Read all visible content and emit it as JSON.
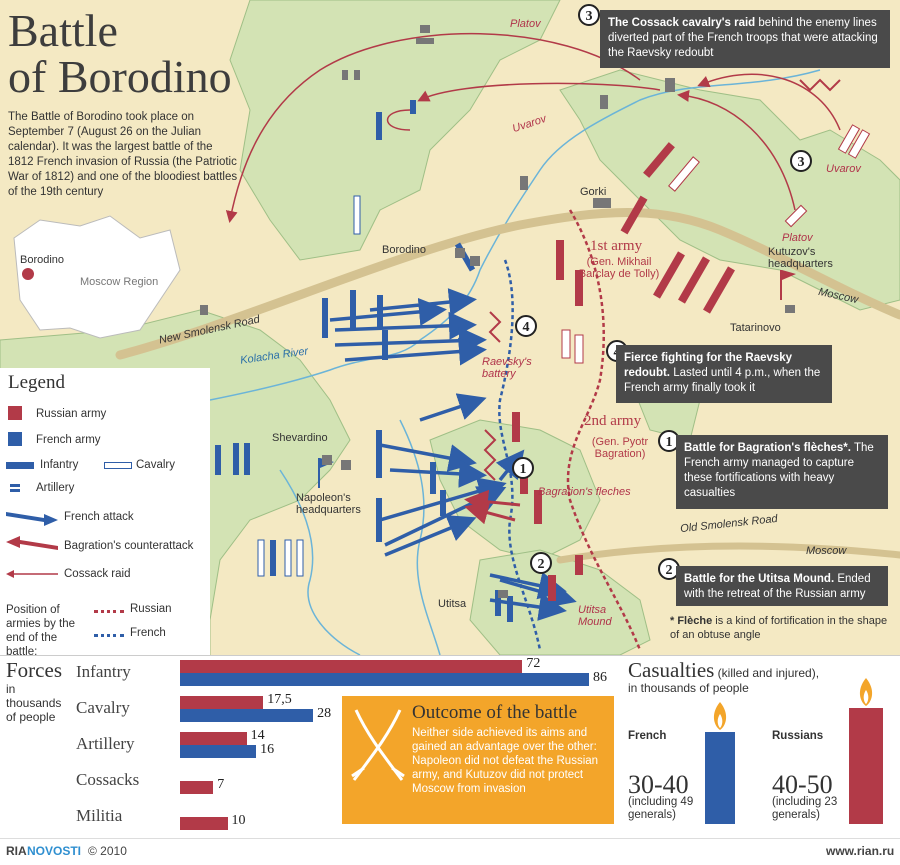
{
  "title": {
    "line1": "Battle",
    "line2": "of Borodino"
  },
  "intro": "The Battle of Borodino took place on September 7 (August 26 on the Julian calendar). It was the largest battle of the 1812 French invasion of Russia (the Patriotic War of 1812) and one of the bloodiest battles of the 19th century",
  "inset": {
    "city": "Borodino",
    "region": "Moscow Region"
  },
  "places": {
    "platov_top": "Platov",
    "uvarov_left": "Uvarov",
    "uvarov_right": "Uvarov",
    "platov_right": "Platov",
    "gorki": "Gorki",
    "borodino": "Borodino",
    "kutuzov_hq": "Kutuzov's headquarters",
    "moscow_upper": "Moscow",
    "moscow_lower": "Moscow",
    "tatarinovo": "Tatarinovo",
    "new_smolensk": "New Smolensk Road",
    "kolacha": "Kolacha River",
    "old_smolensk": "Old Smolensk Road",
    "shevardino": "Shevardino",
    "napoleon_hq": "Napoleon's headquarters",
    "utitsa": "Utitsa",
    "raevsky_battery": "Raevsky's battery",
    "bagration_fleches": "Bagration's fleches",
    "utitsa_mound": "Utitsa Mound",
    "first_army": "1st army",
    "first_army_cmd": "(Gen. Mikhail Barclay de Tolly)",
    "second_army": "2nd army",
    "second_army_cmd": "(Gen. Pyotr Bagration)"
  },
  "callouts": [
    {
      "num": "3",
      "bold": "The Cossack cavalry's raid",
      "text": " behind the enemy lines diverted part of the French troops that were attacking the Raevsky redoubt"
    },
    {
      "num": "4",
      "bold": "Fierce fighting for the Raevsky redoubt.",
      "text": " Lasted until 4 p.m., when the French army finally took it"
    },
    {
      "num": "1",
      "bold": "Battle for Bagration's flèches*.",
      "text": " The French army managed to capture these fortifications with heavy casualties"
    },
    {
      "num": "2",
      "bold": "Battle for the Utitsa Mound.",
      "text": " Ended with the retreat of the Russian army"
    }
  ],
  "footnote": {
    "bold": "* Flèche",
    "text": " is a kind of fortification in the shape of an obtuse angle"
  },
  "legend": {
    "title": "Legend",
    "russian": "Russian army",
    "french": "French army",
    "infantry": "Infantry",
    "cavalry": "Cavalry",
    "artillery": "Artillery",
    "french_attack": "French attack",
    "counterattack": "Bagration's counterattack",
    "cossack_raid": "Cossack raid",
    "position": "Position of armies by the end of the battle:",
    "pos_russian": "Russian",
    "pos_french": "French"
  },
  "colors": {
    "russian": "#b23a48",
    "french": "#2f5ea8",
    "land": "#f3e7bf",
    "forest": "#cfe0b0",
    "road": "#d9c9a0",
    "river": "#6bb4d8",
    "callout": "#4a4a4a",
    "outcome": "#f3a52a"
  },
  "forces": {
    "heading": "Forces",
    "subheading": "in thousands of people",
    "rows": [
      {
        "label": "Infantry",
        "russian": 72,
        "french": 86,
        "russian_text": "72",
        "french_text": "86"
      },
      {
        "label": "Cavalry",
        "russian": 17.5,
        "french": 28,
        "russian_text": "17,5",
        "french_text": "28"
      },
      {
        "label": "Artillery",
        "russian": 14,
        "french": 16,
        "russian_text": "14",
        "french_text": "16"
      },
      {
        "label": "Cossacks",
        "russian": 7,
        "russian_text": "7"
      },
      {
        "label": "Militia",
        "russian": 10,
        "russian_text": "10"
      }
    ]
  },
  "outcome": {
    "title": "Outcome of the battle",
    "text": "Neither side achieved its aims and gained an advantage over the other: Napoleon did not defeat the Russian army, and Kutuzov did not protect Moscow from invasion"
  },
  "casualties": {
    "heading": "Casualties",
    "heading_note": " (killed and injured),",
    "sub": "in thousands of people",
    "french_label": "French",
    "french_value": "30-40",
    "french_note": "(including 49 generals)",
    "russian_label": "Russians",
    "russian_value": "40-50",
    "russian_note": "(including 23 generals)"
  },
  "footer": {
    "brand_left": "RIA",
    "brand_right": "NOVOSTI",
    "copyright": "© 2010",
    "url": "www.rian.ru"
  }
}
